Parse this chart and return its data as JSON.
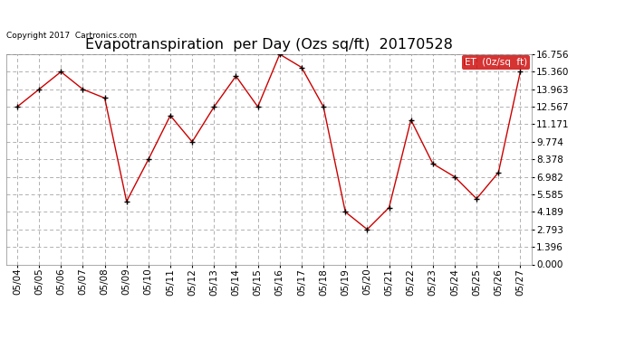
{
  "title": "Evapotranspiration  per Day (Ozs sq/ft)  20170528",
  "copyright_text": "Copyright 2017  Cartronics.com",
  "legend_label": "ET  (0z/sq  ft)",
  "dates": [
    "05/04",
    "05/05",
    "05/06",
    "05/07",
    "05/08",
    "05/09",
    "05/10",
    "05/11",
    "05/12",
    "05/13",
    "05/14",
    "05/15",
    "05/16",
    "05/17",
    "05/18",
    "05/19",
    "05/20",
    "05/21",
    "05/22",
    "05/23",
    "05/24",
    "05/25",
    "05/26",
    "05/27"
  ],
  "values": [
    12.567,
    13.963,
    15.36,
    13.963,
    13.265,
    5.027,
    8.378,
    11.869,
    9.774,
    12.567,
    15.011,
    12.567,
    16.756,
    15.709,
    12.567,
    4.189,
    2.793,
    4.537,
    11.52,
    8.03,
    6.982,
    5.236,
    7.33,
    15.36
  ],
  "line_color": "#cc0000",
  "marker_color": "#000000",
  "bg_color": "#ffffff",
  "grid_color": "#b0b0b0",
  "ylim": [
    0.0,
    16.756
  ],
  "yticks": [
    0.0,
    1.396,
    2.793,
    4.189,
    5.585,
    6.982,
    8.378,
    9.774,
    11.171,
    12.567,
    13.963,
    15.36,
    16.756
  ],
  "title_fontsize": 11.5,
  "tick_fontsize": 7.5,
  "copyright_fontsize": 6.5,
  "legend_bg": "#cc0000",
  "legend_text_color": "#ffffff",
  "legend_fontsize": 7.5
}
